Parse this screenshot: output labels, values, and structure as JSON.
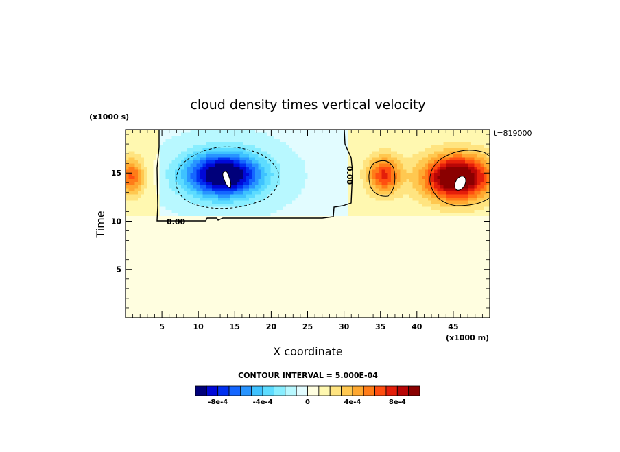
{
  "chart_data": {
    "type": "heatmap",
    "title": "cloud density times vertical velocity",
    "xlabel": "X coordinate",
    "ylabel": "Time",
    "x_units": "(x1000 m)",
    "y_units": "(x1000 s)",
    "time_stamp": "t=819000",
    "xlim": [
      0,
      50
    ],
    "ylim": [
      0,
      19.5
    ],
    "x_ticks": [
      5,
      10,
      15,
      20,
      25,
      30,
      35,
      40,
      45
    ],
    "y_ticks": [
      5,
      10,
      15
    ],
    "contour_interval_text": "CONTOUR INTERVAL = 5.000E-04",
    "contour_label": "0.00",
    "colorbar": {
      "levels_min": -0.001,
      "levels_max": 0.001,
      "step": 0.0001,
      "tick_labels": [
        "-8e-4",
        "-4e-4",
        "0",
        "4e-4",
        "8e-4"
      ],
      "tick_values": [
        -0.0008,
        -0.0004,
        0,
        0.0004,
        0.0008
      ],
      "colors": [
        "#00007a",
        "#0008d8",
        "#0030f0",
        "#1466ff",
        "#2894ff",
        "#3ec2ff",
        "#5ddcff",
        "#88eeff",
        "#b8f8ff",
        "#e2fcff",
        "#fffee0",
        "#fff8b0",
        "#ffe480",
        "#ffc850",
        "#ffa830",
        "#ff7c18",
        "#ff4e10",
        "#e41e0a",
        "#b80606",
        "#8a0000"
      ]
    },
    "features": [
      {
        "kind": "negative",
        "x": 13.5,
        "y": 14.8,
        "peak": -0.00105,
        "sx": 5.5,
        "sy": 2.4
      },
      {
        "kind": "positive",
        "x": 45.5,
        "y": 14.5,
        "peak": 0.00105,
        "sx": 4.8,
        "sy": 2.4
      },
      {
        "kind": "positive",
        "x": 35.5,
        "y": 14.8,
        "peak": 0.0006,
        "sx": 2.3,
        "sy": 2.0
      },
      {
        "kind": "positive",
        "x": 0.8,
        "y": 14.6,
        "peak": 0.0005,
        "sx": 1.8,
        "sy": 2.0
      }
    ]
  }
}
